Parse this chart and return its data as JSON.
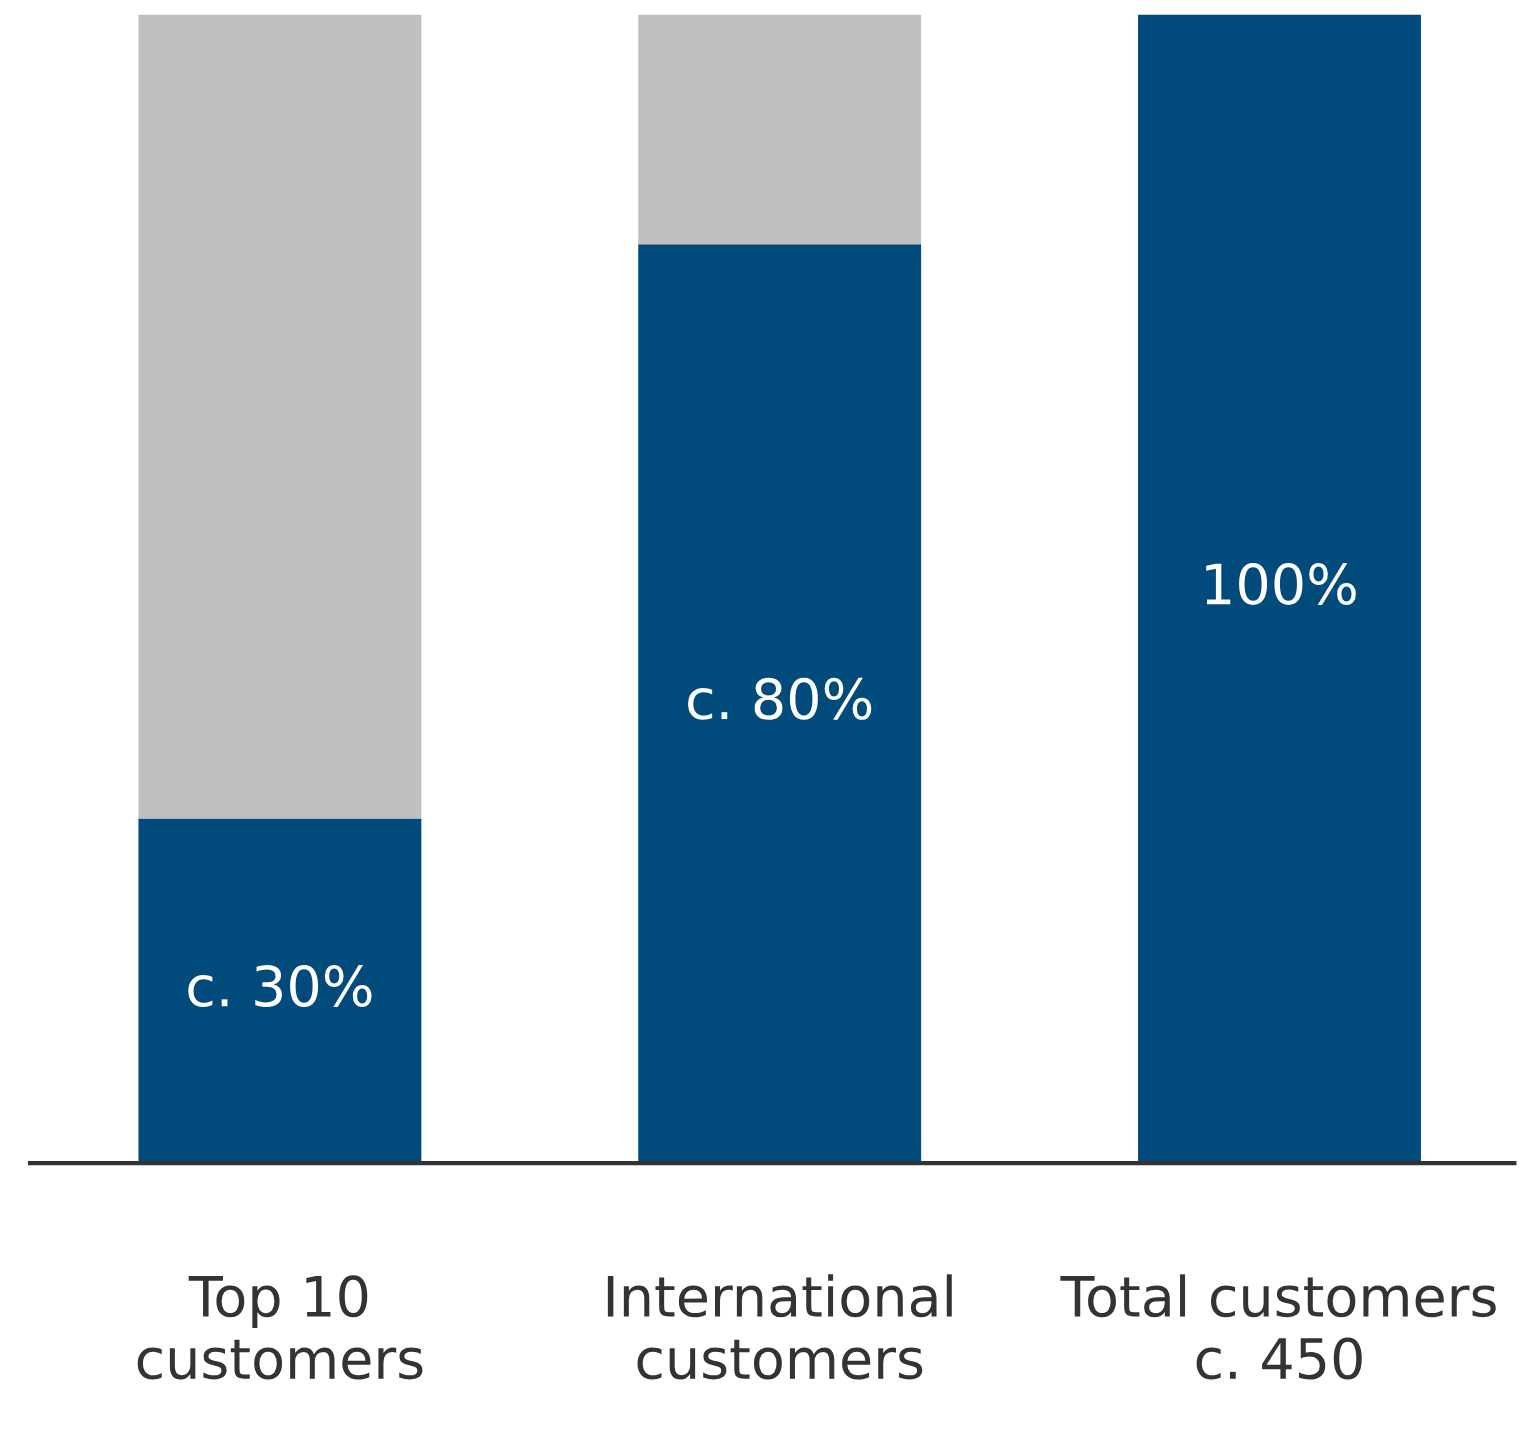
{
  "chart_data": {
    "type": "bar",
    "stacked": true,
    "categories": [
      "Top 10\ncustomers",
      "International\ncustomers",
      "Total customers\nc. 450"
    ],
    "series": [
      {
        "color": "#004a7c",
        "values": [
          30,
          80,
          100
        ],
        "value_labels": [
          "c. 30%",
          "c. 80%",
          "100%"
        ]
      },
      {
        "color": "#bfbfbf",
        "values": [
          70,
          20,
          null
        ]
      }
    ],
    "ylim": [
      0,
      100
    ],
    "tick_labels": "x",
    "grid": false,
    "legend": false
  }
}
